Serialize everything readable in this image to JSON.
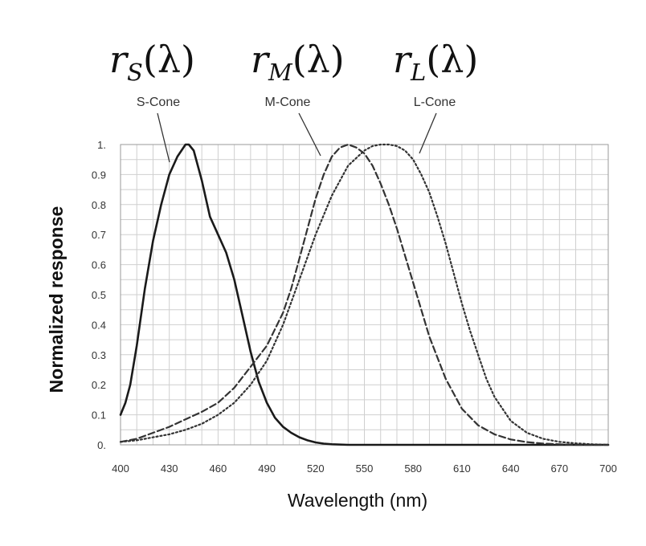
{
  "chart_data": {
    "type": "line",
    "xlabel": "Wavelength (nm)",
    "ylabel": "Normalized response",
    "xlim": [
      400,
      700
    ],
    "ylim": [
      0,
      1
    ],
    "xticks": [
      400,
      430,
      460,
      490,
      520,
      550,
      580,
      610,
      640,
      670,
      700
    ],
    "xtick_labels": [
      "400",
      "430",
      "460",
      "490",
      "520",
      "550",
      "580",
      "610",
      "640",
      "670",
      "700"
    ],
    "yticks": [
      0,
      0.1,
      0.2,
      0.3,
      0.4,
      0.5,
      0.6,
      0.7,
      0.8,
      0.9,
      1
    ],
    "ytick_labels": [
      "0.",
      "0.1",
      "0.2",
      "0.3",
      "0.4",
      "0.5",
      "0.6",
      "0.7",
      "0.8",
      "0.9",
      "1."
    ],
    "grid": true,
    "x_minor_step": 10,
    "y_minor_step": 0.05,
    "series": [
      {
        "name": "S-Cone",
        "math_label": {
          "base": "r",
          "sub": "S",
          "arg": "(λ)"
        },
        "style": "solid",
        "color": "#1a1a1a",
        "x": [
          400,
          403,
          406,
          410,
          415,
          420,
          425,
          430,
          435,
          440,
          442,
          445,
          450,
          455,
          460,
          465,
          470,
          475,
          480,
          485,
          490,
          495,
          500,
          505,
          510,
          515,
          520,
          525,
          530,
          540,
          560,
          600,
          650,
          700
        ],
        "y": [
          0.1,
          0.14,
          0.2,
          0.33,
          0.52,
          0.68,
          0.8,
          0.9,
          0.96,
          1.0,
          1.0,
          0.98,
          0.88,
          0.76,
          0.7,
          0.64,
          0.55,
          0.43,
          0.31,
          0.21,
          0.14,
          0.09,
          0.06,
          0.04,
          0.025,
          0.015,
          0.008,
          0.004,
          0.002,
          0.0,
          0.0,
          0.0,
          0.0,
          0.0
        ]
      },
      {
        "name": "M-Cone",
        "math_label": {
          "base": "r",
          "sub": "M",
          "arg": "(λ)"
        },
        "style": "dashed",
        "color": "#333333",
        "x": [
          400,
          410,
          420,
          430,
          440,
          450,
          460,
          470,
          480,
          490,
          500,
          505,
          510,
          515,
          520,
          525,
          530,
          535,
          540,
          545,
          550,
          555,
          560,
          565,
          570,
          575,
          580,
          585,
          590,
          595,
          600,
          605,
          610,
          620,
          630,
          640,
          650,
          660,
          670,
          680,
          700
        ],
        "y": [
          0.01,
          0.02,
          0.04,
          0.06,
          0.085,
          0.11,
          0.14,
          0.19,
          0.26,
          0.33,
          0.44,
          0.52,
          0.62,
          0.72,
          0.82,
          0.9,
          0.96,
          0.99,
          1.0,
          0.99,
          0.97,
          0.93,
          0.87,
          0.8,
          0.72,
          0.63,
          0.54,
          0.45,
          0.36,
          0.29,
          0.22,
          0.17,
          0.12,
          0.065,
          0.035,
          0.018,
          0.009,
          0.004,
          0.002,
          0.0,
          0.0
        ]
      },
      {
        "name": "L-Cone",
        "math_label": {
          "base": "r",
          "sub": "L",
          "arg": "(λ)"
        },
        "style": "dotted",
        "color": "#333333",
        "x": [
          400,
          410,
          420,
          430,
          440,
          450,
          460,
          470,
          480,
          490,
          500,
          510,
          520,
          530,
          540,
          550,
          555,
          560,
          565,
          570,
          575,
          580,
          585,
          590,
          595,
          600,
          605,
          610,
          615,
          620,
          625,
          630,
          640,
          650,
          660,
          670,
          680,
          690,
          700
        ],
        "y": [
          0.01,
          0.015,
          0.025,
          0.035,
          0.05,
          0.07,
          0.1,
          0.14,
          0.2,
          0.28,
          0.4,
          0.55,
          0.7,
          0.83,
          0.93,
          0.98,
          0.995,
          1.0,
          1.0,
          0.995,
          0.98,
          0.95,
          0.9,
          0.84,
          0.76,
          0.67,
          0.57,
          0.47,
          0.38,
          0.3,
          0.22,
          0.16,
          0.08,
          0.04,
          0.02,
          0.01,
          0.005,
          0.002,
          0.0
        ]
      }
    ]
  }
}
